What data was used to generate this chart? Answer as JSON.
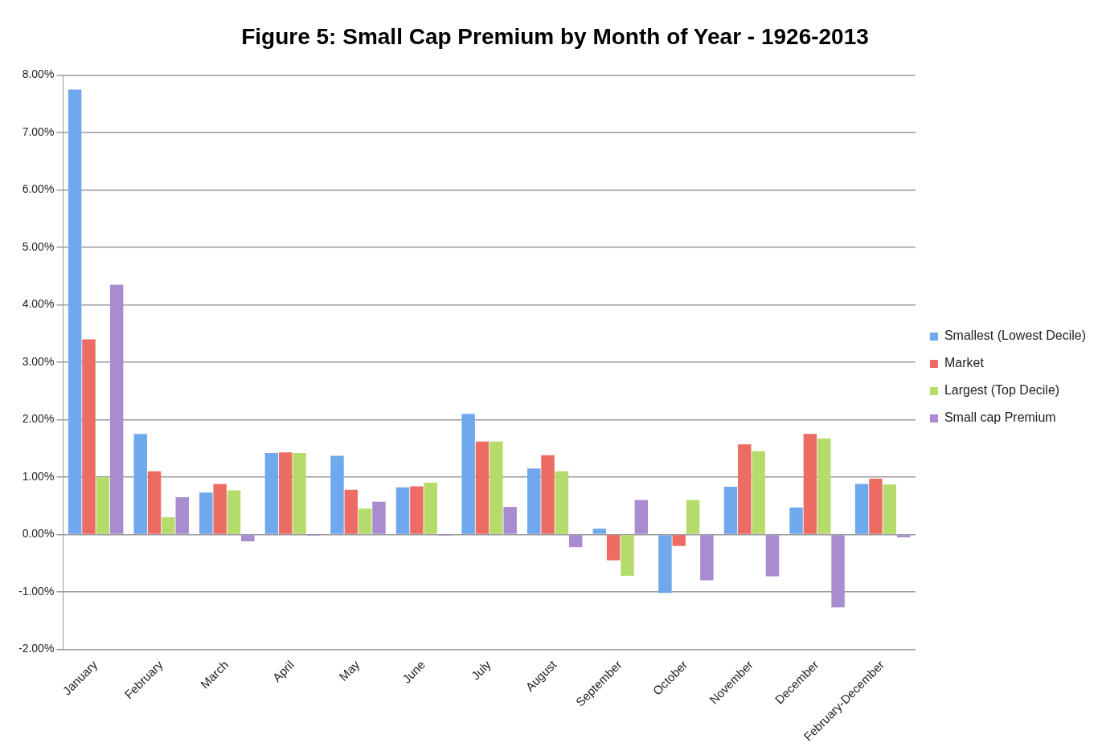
{
  "chart_data": {
    "type": "bar",
    "title": "Figure 5: Small Cap Premium by Month of Year - 1926-2013",
    "categories": [
      "January",
      "February",
      "March",
      "April",
      "May",
      "June",
      "July",
      "August",
      "September",
      "October",
      "November",
      "December",
      "February-December"
    ],
    "series": [
      {
        "name": "Smallest (Lowest Decile)",
        "color": "#6fa8ec",
        "values": [
          7.75,
          1.75,
          0.73,
          1.42,
          1.37,
          0.82,
          2.1,
          1.15,
          0.1,
          -1.02,
          0.83,
          0.47,
          0.88
        ]
      },
      {
        "name": "Market",
        "color": "#ec6b63",
        "values": [
          3.4,
          1.1,
          0.88,
          1.43,
          0.78,
          0.84,
          1.62,
          1.38,
          -0.45,
          -0.2,
          1.57,
          1.75,
          0.97
        ]
      },
      {
        "name": "Largest (Top Decile)",
        "color": "#b5dc6a",
        "values": [
          1.0,
          0.3,
          0.77,
          1.42,
          0.45,
          0.9,
          1.62,
          1.1,
          -0.72,
          0.6,
          1.45,
          1.67,
          0.87
        ]
      },
      {
        "name": "Small cap Premium",
        "color": "#a98bd0",
        "values": [
          4.35,
          0.65,
          -0.12,
          -0.02,
          0.57,
          -0.02,
          0.48,
          -0.22,
          0.6,
          -0.8,
          -0.73,
          -1.27,
          -0.05
        ]
      }
    ],
    "ylim": [
      -2,
      8
    ],
    "yticks": [
      {
        "value": -2,
        "label": "-2.00%"
      },
      {
        "value": -1,
        "label": "-1.00%"
      },
      {
        "value": 0,
        "label": "0.00%"
      },
      {
        "value": 1,
        "label": "1.00%"
      },
      {
        "value": 2,
        "label": "2.00%"
      },
      {
        "value": 3,
        "label": "3.00%"
      },
      {
        "value": 4,
        "label": "4.00%"
      },
      {
        "value": 5,
        "label": "5.00%"
      },
      {
        "value": 6,
        "label": "6.00%"
      },
      {
        "value": 7,
        "label": "7.00%"
      },
      {
        "value": 8,
        "label": "8.00%"
      }
    ],
    "grid": "y",
    "legend": "right"
  }
}
